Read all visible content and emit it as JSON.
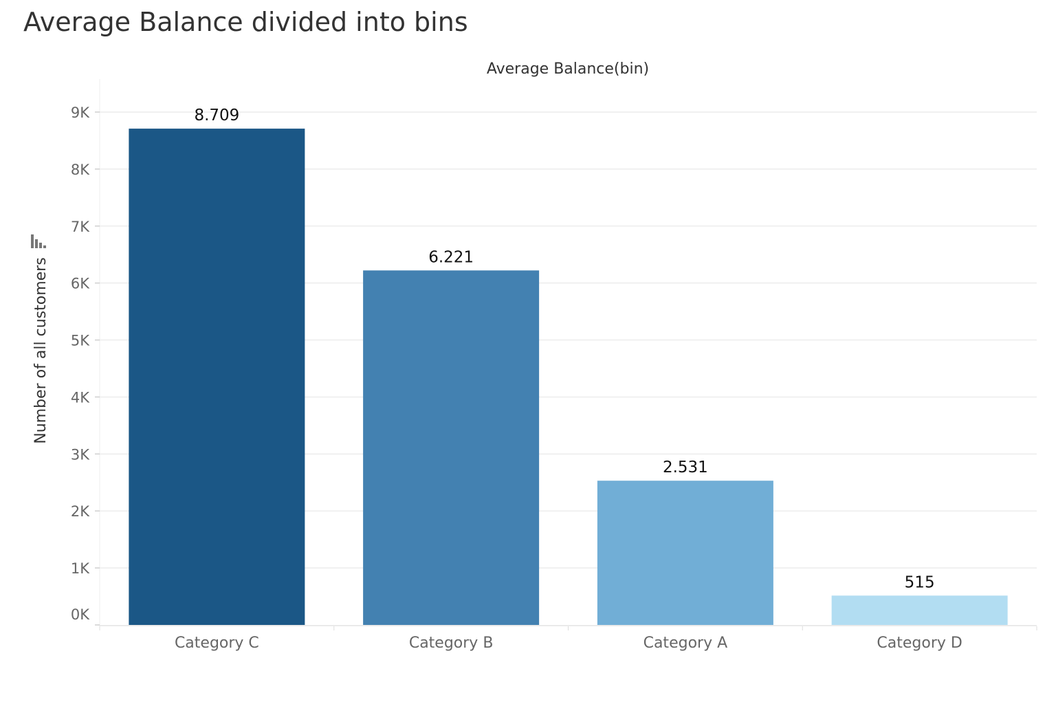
{
  "chart_data": {
    "type": "bar",
    "title": "Average Balance divided into bins",
    "column_header": "Average Balance(bin)",
    "ylabel": "Number of all customers",
    "categories": [
      "Category C",
      "Category B",
      "Category A",
      "Category D"
    ],
    "values": [
      8709,
      6221,
      2531,
      515
    ],
    "data_labels": [
      "8.709",
      "6.221",
      "2.531",
      "515"
    ],
    "colors": [
      "#1b5786",
      "#4381b1",
      "#71aed6",
      "#b2ddf2"
    ],
    "ylim": [
      0,
      9000
    ],
    "yticks": [
      0,
      1000,
      2000,
      3000,
      4000,
      5000,
      6000,
      7000,
      8000,
      9000
    ],
    "ytick_labels": [
      "0K",
      "1K",
      "2K",
      "3K",
      "4K",
      "5K",
      "6K",
      "7K",
      "8K",
      "9K"
    ],
    "grid": true
  }
}
